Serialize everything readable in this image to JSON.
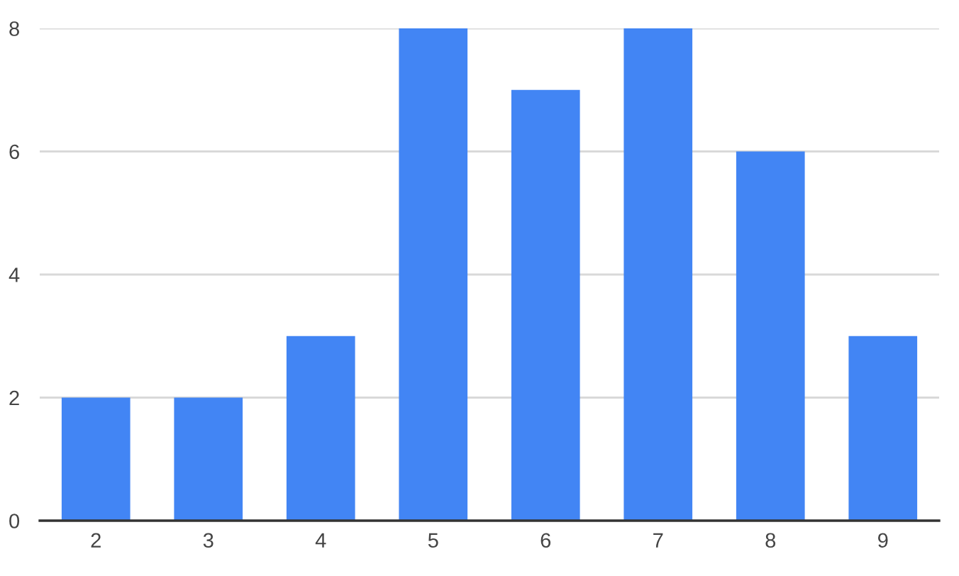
{
  "chart_data": {
    "type": "bar",
    "categories": [
      "2",
      "3",
      "4",
      "5",
      "6",
      "7",
      "8",
      "9"
    ],
    "values": [
      2,
      2,
      3,
      8,
      7,
      8,
      6,
      3
    ],
    "color": "#4285f4",
    "ylim": [
      0,
      8
    ],
    "yticks": [
      0,
      2,
      4,
      6,
      8
    ],
    "grid": "y"
  }
}
